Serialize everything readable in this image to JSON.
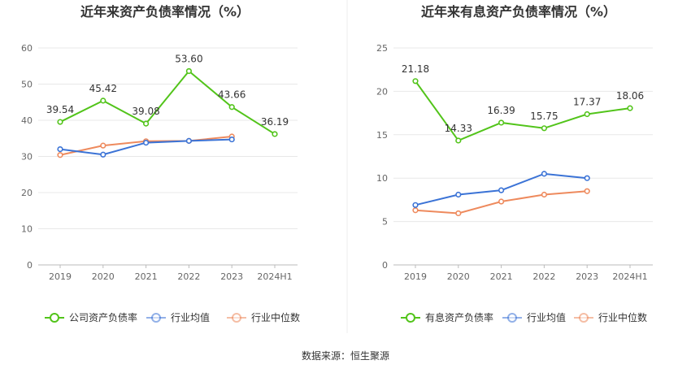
{
  "source": "数据来源：恒生聚源",
  "colors": {
    "main": "#52c41a",
    "avg": "#3b73d6",
    "median": "#ee8a5d"
  },
  "chart_data": [
    {
      "type": "line",
      "title": "近年来资产负债率情况（%）",
      "categories": [
        "2019",
        "2020",
        "2021",
        "2022",
        "2023",
        "2024H1"
      ],
      "ylim": [
        0,
        60
      ],
      "yticks": [
        "0",
        "10",
        "20",
        "30",
        "40",
        "50",
        "60"
      ],
      "ytick_values": [
        0,
        10,
        20,
        30,
        40,
        50,
        60
      ],
      "grid": true,
      "legend": "bottom",
      "series": [
        {
          "name": "公司资产负债率",
          "color": "#52c41a",
          "labels": true,
          "values": [
            39.54,
            45.42,
            39.08,
            53.6,
            43.66,
            36.19
          ],
          "value_labels": [
            "39.54",
            "45.42",
            "39.08",
            "53.60",
            "43.66",
            "36.19"
          ]
        },
        {
          "name": "行业均值",
          "color": "#3b73d6",
          "labels": false,
          "values": [
            32.0,
            30.5,
            33.8,
            34.3,
            34.7,
            null
          ]
        },
        {
          "name": "行业中位数",
          "color": "#ee8a5d",
          "labels": false,
          "values": [
            30.4,
            33.0,
            34.2,
            34.3,
            35.5,
            null
          ]
        }
      ]
    },
    {
      "type": "line",
      "title": "近年来有息资产负债率情况（%）",
      "categories": [
        "2019",
        "2020",
        "2021",
        "2022",
        "2023",
        "2024H1"
      ],
      "ylim": [
        0,
        25
      ],
      "yticks": [
        "0",
        "5",
        "10",
        "15",
        "20",
        "25"
      ],
      "ytick_values": [
        0,
        5,
        10,
        15,
        20,
        25
      ],
      "grid": true,
      "legend": "bottom",
      "series": [
        {
          "name": "有息资产负债率",
          "color": "#52c41a",
          "labels": true,
          "values": [
            21.18,
            14.33,
            16.39,
            15.75,
            17.37,
            18.06
          ],
          "value_labels": [
            "21.18",
            "14.33",
            "16.39",
            "15.75",
            "17.37",
            "18.06"
          ]
        },
        {
          "name": "行业均值",
          "color": "#3b73d6",
          "labels": false,
          "values": [
            6.9,
            8.1,
            8.6,
            10.5,
            10.0,
            null
          ]
        },
        {
          "name": "行业中位数",
          "color": "#ee8a5d",
          "labels": false,
          "values": [
            6.3,
            5.95,
            7.3,
            8.1,
            8.5,
            null
          ]
        }
      ]
    }
  ]
}
